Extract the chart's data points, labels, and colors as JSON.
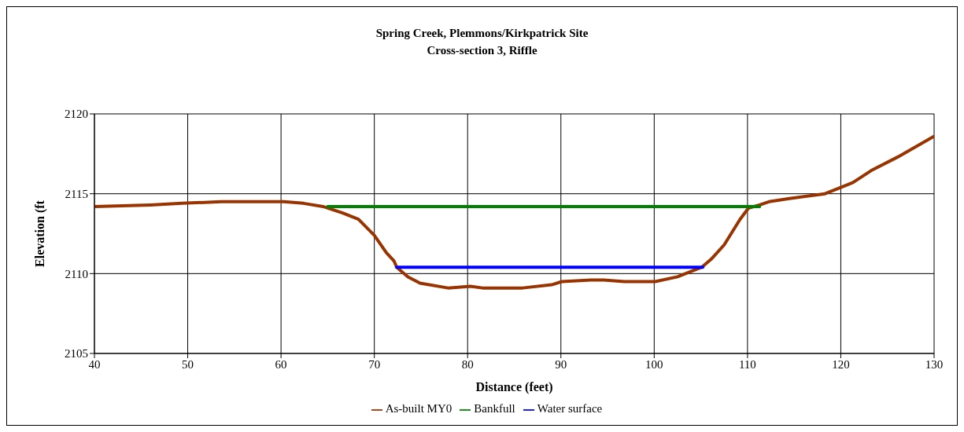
{
  "chart_data": {
    "type": "line",
    "title": "Spring Creek, Plemmons/Kirkpatrick Site",
    "subtitle": "Cross-section 3, Riffle",
    "xlabel": "Distance (feet)",
    "ylabel": "Elevation (ft",
    "xlim": [
      40,
      130
    ],
    "xticks": [
      40,
      50,
      60,
      70,
      80,
      90,
      100,
      110,
      120,
      130
    ],
    "ylim": [
      2105,
      2120
    ],
    "yticks": [
      2105,
      2110,
      2115,
      2120
    ],
    "grid": true,
    "legend": "bottom",
    "marker": "none",
    "line_style": "solid",
    "series": [
      {
        "name": "As-built MY0",
        "color": "#993300",
        "x": [
          40,
          46,
          49.4,
          53.6,
          60.3,
          62.4,
          64.5,
          66.6,
          68.3,
          70,
          71.3,
          72.1,
          72.4,
          73.6,
          74.9,
          77.9,
          80.3,
          81.6,
          85.9,
          89,
          90.1,
          93.2,
          94.6,
          96.8,
          100.1,
          102.5,
          105.1,
          106.1,
          107.5,
          109.2,
          110.1,
          111.3,
          112.3,
          114.5,
          118.3,
          120,
          121.3,
          123.4,
          126.1,
          130
        ],
        "values": [
          2114.2,
          2114.3,
          2114.4,
          2114.5,
          2114.5,
          2114.4,
          2114.2,
          2113.8,
          2113.4,
          2112.4,
          2111.3,
          2110.8,
          2110.4,
          2109.8,
          2109.4,
          2109.1,
          2109.2,
          2109.1,
          2109.1,
          2109.3,
          2109.5,
          2109.6,
          2109.6,
          2109.5,
          2109.5,
          2109.8,
          2110.4,
          2110.9,
          2111.8,
          2113.4,
          2114.1,
          2114.3,
          2114.5,
          2114.7,
          2115.0,
          2115.4,
          2115.7,
          2116.5,
          2117.3,
          2118.6
        ]
      },
      {
        "name": "Water surface",
        "color": "#0000ff",
        "x": [
          72.4,
          105.2
        ],
        "values": [
          2110.4,
          2110.4
        ]
      },
      {
        "name": "Bankfull",
        "color": "#008000",
        "x": [
          65,
          111.3
        ],
        "values": [
          2114.2,
          2114.2
        ]
      }
    ]
  }
}
